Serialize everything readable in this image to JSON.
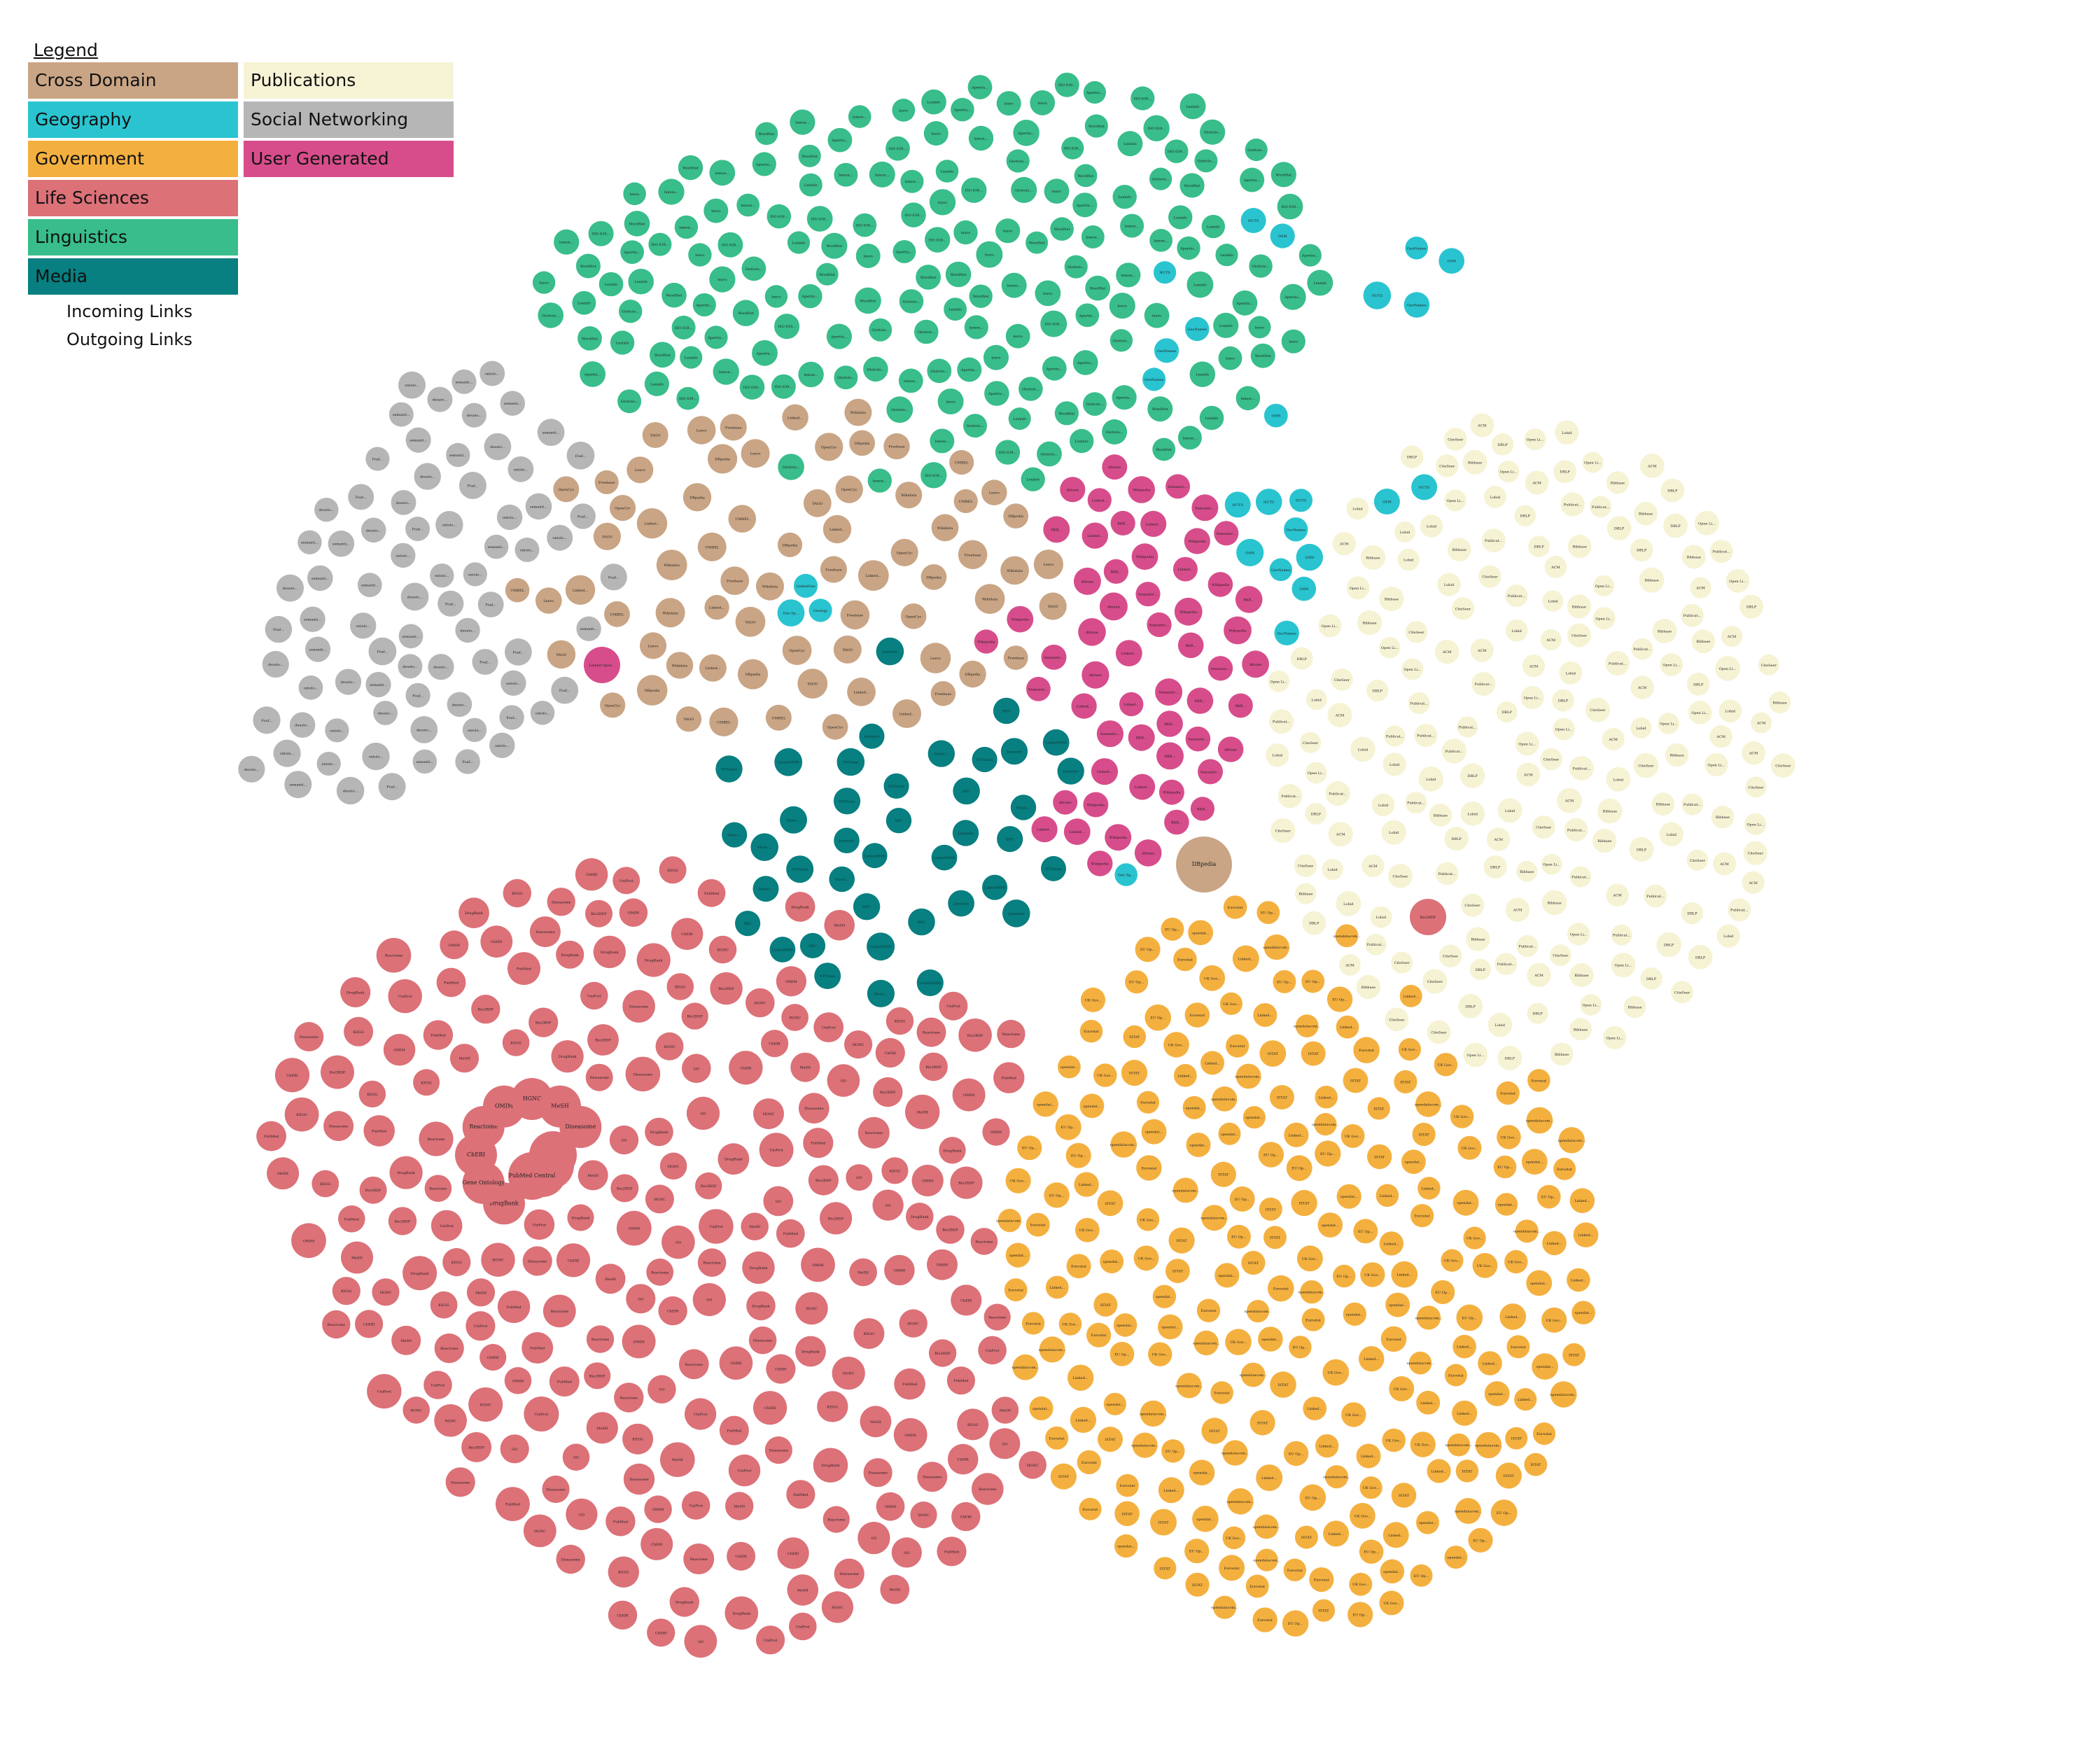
{
  "legend": {
    "title": "Legend",
    "categories": [
      {
        "key": "cross",
        "label": "Cross Domain",
        "color": "#c9a585"
      },
      {
        "key": "geo",
        "label": "Geography",
        "color": "#29c4d0"
      },
      {
        "key": "gov",
        "label": "Government",
        "color": "#f4b03f"
      },
      {
        "key": "life",
        "label": "Life Sciences",
        "color": "#dc7178"
      },
      {
        "key": "ling",
        "label": "Linguistics",
        "color": "#38bd8b"
      },
      {
        "key": "media",
        "label": "Media",
        "color": "#087f80"
      },
      {
        "key": "pub",
        "label": "Publications",
        "color": "#f6f3d5"
      },
      {
        "key": "social",
        "label": "Social Networking",
        "color": "#b6b6b6"
      },
      {
        "key": "user",
        "label": "User Generated",
        "color": "#d74d8b"
      }
    ],
    "incoming_links": "Incoming Links",
    "outgoing_links": "Outgoing Links"
  },
  "node_counts": {
    "cross": 70,
    "geo": 50,
    "gov": 250,
    "life": 430,
    "ling": 190,
    "media": 40,
    "pub": 200,
    "social": 100,
    "user": 60
  },
  "node_labels": {
    "cross": [
      "DBpedia",
      "Wikidata",
      "Linked...",
      "Freebase",
      "YAGO",
      "OpenCyc",
      "UMBEL",
      "Lexvo"
    ],
    "geo": [
      "GeoNames",
      "LinkedGeo",
      "OSM",
      "Geo Sp...",
      "NUTS",
      "Geology"
    ],
    "gov": [
      "opendat...",
      "Linked...",
      "EU Op...",
      "ISTAT",
      "UK Gov...",
      "Eurostat",
      "opendatacom..."
    ],
    "life": [
      "Bio2RDF",
      "UniProt",
      "KEGG",
      "PubMed",
      "GO",
      "DrugBank",
      "ChEBI",
      "MeSH",
      "Diseasome",
      "Reactome",
      "OMIM",
      "HGNC"
    ],
    "ling": [
      "Apertiu...",
      "lemon...",
      "WordNet",
      "Glottolo...",
      "Lexinfo",
      "ISO 639...",
      "lexvo"
    ],
    "media": [
      "BBC",
      "Music...",
      "Jamendo",
      "LinkedMDB",
      "NYTimes"
    ],
    "pub": [
      "Open Li...",
      "DBLP",
      "Publicat...",
      "Bibbase",
      "ACM",
      "CiteSeer",
      "Lobid"
    ],
    "social": [
      "deusto...",
      "ontolo...",
      "semanti...",
      "Foaf..."
    ],
    "user": [
      "Wikipedia",
      "Semantic...",
      "Linked...",
      "RKB...",
      "dbtune"
    ]
  },
  "hub_labels": {
    "life": [
      "Bio2RDF",
      "UniProt",
      "KEGG",
      "PubMed Central",
      "DrugBank",
      "Gene Ontology",
      "ChEBI",
      "Reactome",
      "OMIM",
      "HGNC",
      "MeSH",
      "Diseasome"
    ],
    "cross": [
      "DBpedia"
    ],
    "user": [
      "Linked Open..."
    ]
  }
}
